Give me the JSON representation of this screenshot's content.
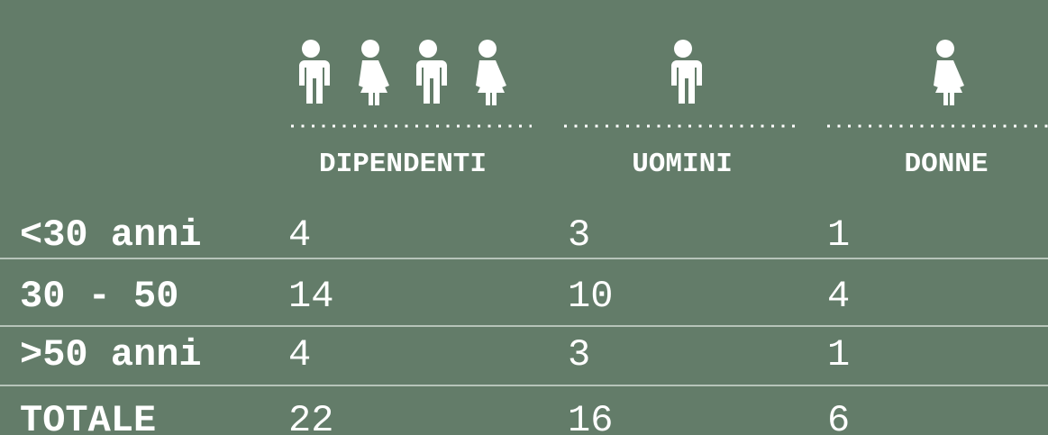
{
  "table": {
    "columns": [
      "DIPENDENTI",
      "UOMINI",
      "DONNE"
    ],
    "rows": [
      [
        "<30 anni",
        "4",
        "3",
        "1"
      ],
      [
        "30 - 50",
        "14",
        "10",
        "4"
      ],
      [
        ">50 anni",
        "4",
        "3",
        "1"
      ],
      [
        "TOTALE",
        "22",
        "16",
        "6"
      ]
    ]
  }
}
